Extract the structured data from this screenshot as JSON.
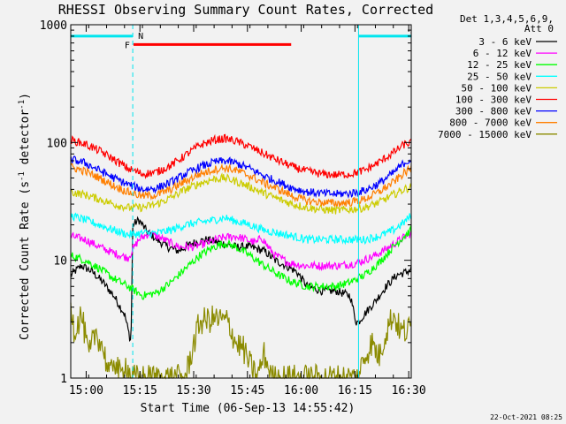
{
  "chart_data": {
    "type": "line",
    "title": "RHESSI Observing Summary Count Rates, Corrected",
    "xlabel": "Start Time (06-Sep-13 14:55:42)",
    "ylabel_main": "Corrected Count Rate (s",
    "ylabel_sup1": "-1",
    "ylabel_mid": " detector",
    "ylabel_sup2": "-1",
    "ylabel_end": ")",
    "timestamp": "22-Oct-2021 08:25",
    "yscale": "log",
    "xlim_min": [
      0,
      95
    ],
    "ylim": [
      1,
      1000
    ],
    "x_ticks": [
      {
        "min": 4.3,
        "label": "15:00"
      },
      {
        "min": 19.3,
        "label": "15:15"
      },
      {
        "min": 34.3,
        "label": "15:30"
      },
      {
        "min": 49.3,
        "label": "15:45"
      },
      {
        "min": 64.3,
        "label": "16:00"
      },
      {
        "min": 79.3,
        "label": "16:15"
      },
      {
        "min": 94.3,
        "label": "16:30"
      }
    ],
    "y_ticks": [
      {
        "value": 1,
        "label": "1"
      },
      {
        "value": 10,
        "label": "10"
      },
      {
        "value": 100,
        "label": "100"
      },
      {
        "value": 1000,
        "label": "1000"
      }
    ],
    "legend_header": [
      "Det 1,3,4,5,6,9,",
      "Att 0"
    ],
    "legend_position": "right",
    "flags": {
      "night_intervals_min": [
        [
          0,
          17.3
        ],
        [
          80.3,
          95
        ]
      ],
      "night_level": 800,
      "flare_interval_min": [
        17.5,
        61.5
      ],
      "flare_level": 680,
      "night_label": "N",
      "flare_label": "F",
      "night_color": "#00e5ee",
      "flare_color": "#ff0000"
    },
    "series": [
      {
        "name": "3 - 6 keV",
        "color": "#000000",
        "points": [
          [
            0,
            7.5
          ],
          [
            3,
            9
          ],
          [
            6,
            8
          ],
          [
            9,
            6.5
          ],
          [
            12,
            5
          ],
          [
            15,
            3.5
          ],
          [
            16.8,
            2
          ],
          [
            17.3,
            20
          ],
          [
            19,
            22
          ],
          [
            21,
            18
          ],
          [
            24,
            15
          ],
          [
            27,
            13
          ],
          [
            30,
            12
          ],
          [
            34,
            14
          ],
          [
            38,
            15
          ],
          [
            42,
            14
          ],
          [
            46,
            13
          ],
          [
            50,
            13
          ],
          [
            54,
            12
          ],
          [
            57,
            10
          ],
          [
            60,
            9
          ],
          [
            63,
            8
          ],
          [
            66,
            6
          ],
          [
            70,
            5.5
          ],
          [
            74,
            5.5
          ],
          [
            78,
            5
          ],
          [
            79.6,
            3
          ],
          [
            80.3,
            3
          ],
          [
            82,
            3.5
          ],
          [
            85,
            4.5
          ],
          [
            88,
            6
          ],
          [
            91,
            7.5
          ],
          [
            94,
            8
          ],
          [
            95,
            8.5
          ]
        ]
      },
      {
        "name": "6 - 12 keV",
        "color": "#ff00ff",
        "points": [
          [
            0,
            16
          ],
          [
            4,
            15
          ],
          [
            8,
            13
          ],
          [
            12,
            11.5
          ],
          [
            16,
            10.5
          ],
          [
            19,
            15
          ],
          [
            22,
            17
          ],
          [
            26,
            15
          ],
          [
            30,
            13
          ],
          [
            34,
            13
          ],
          [
            38,
            14
          ],
          [
            42,
            15.5
          ],
          [
            46,
            16
          ],
          [
            49,
            15
          ],
          [
            52,
            14
          ],
          [
            53,
            16
          ],
          [
            55,
            13
          ],
          [
            57,
            11
          ],
          [
            61,
            9.5
          ],
          [
            65,
            9
          ],
          [
            70,
            9
          ],
          [
            75,
            9
          ],
          [
            80,
            9.5
          ],
          [
            85,
            11
          ],
          [
            89,
            13
          ],
          [
            92,
            15
          ],
          [
            95,
            17
          ]
        ]
      },
      {
        "name": "12 - 25 keV",
        "color": "#00ff00",
        "points": [
          [
            0,
            11
          ],
          [
            4,
            10
          ],
          [
            8,
            8.5
          ],
          [
            12,
            7
          ],
          [
            16,
            6
          ],
          [
            20,
            5
          ],
          [
            24,
            5.3
          ],
          [
            28,
            6.5
          ],
          [
            32,
            8.5
          ],
          [
            36,
            11
          ],
          [
            40,
            13
          ],
          [
            43,
            14
          ],
          [
            46,
            13
          ],
          [
            50,
            11
          ],
          [
            54,
            9
          ],
          [
            58,
            7.5
          ],
          [
            62,
            6.5
          ],
          [
            66,
            6
          ],
          [
            70,
            6
          ],
          [
            74,
            6
          ],
          [
            78,
            6.5
          ],
          [
            82,
            7.5
          ],
          [
            86,
            9.5
          ],
          [
            90,
            13
          ],
          [
            93,
            16
          ],
          [
            95,
            18
          ]
        ]
      },
      {
        "name": "25 - 50 keV",
        "color": "#00ffff",
        "points": [
          [
            0,
            24
          ],
          [
            4,
            22
          ],
          [
            8,
            20
          ],
          [
            12,
            18
          ],
          [
            16,
            16.5
          ],
          [
            20,
            17
          ],
          [
            24,
            17
          ],
          [
            28,
            18
          ],
          [
            32,
            20
          ],
          [
            36,
            21
          ],
          [
            40,
            22
          ],
          [
            43,
            23
          ],
          [
            46,
            21.5
          ],
          [
            50,
            20
          ],
          [
            54,
            18
          ],
          [
            58,
            17
          ],
          [
            62,
            16
          ],
          [
            66,
            15
          ],
          [
            70,
            15
          ],
          [
            74,
            15
          ],
          [
            78,
            15
          ],
          [
            82,
            15
          ],
          [
            86,
            16
          ],
          [
            90,
            18
          ],
          [
            93,
            21
          ],
          [
            95,
            24
          ]
        ]
      },
      {
        "name": "50 - 100 keV",
        "color": "#cccc00",
        "points": [
          [
            0,
            38
          ],
          [
            4,
            36
          ],
          [
            8,
            33
          ],
          [
            12,
            30
          ],
          [
            16,
            28
          ],
          [
            20,
            28
          ],
          [
            24,
            30
          ],
          [
            28,
            34
          ],
          [
            32,
            40
          ],
          [
            36,
            45
          ],
          [
            40,
            49
          ],
          [
            43,
            50
          ],
          [
            46,
            47
          ],
          [
            50,
            42
          ],
          [
            54,
            37
          ],
          [
            58,
            33
          ],
          [
            62,
            30
          ],
          [
            66,
            28
          ],
          [
            70,
            27
          ],
          [
            74,
            26.5
          ],
          [
            78,
            27
          ],
          [
            82,
            28
          ],
          [
            86,
            31
          ],
          [
            90,
            36
          ],
          [
            93,
            40
          ],
          [
            95,
            42
          ]
        ]
      },
      {
        "name": "100 - 300 keV",
        "color": "#ff0000",
        "points": [
          [
            0,
            105
          ],
          [
            4,
            97
          ],
          [
            8,
            85
          ],
          [
            12,
            72
          ],
          [
            16,
            60
          ],
          [
            20,
            54
          ],
          [
            24,
            56
          ],
          [
            28,
            64
          ],
          [
            32,
            78
          ],
          [
            36,
            95
          ],
          [
            40,
            105
          ],
          [
            43,
            108
          ],
          [
            46,
            103
          ],
          [
            50,
            92
          ],
          [
            54,
            80
          ],
          [
            58,
            70
          ],
          [
            62,
            62
          ],
          [
            66,
            57
          ],
          [
            70,
            54
          ],
          [
            74,
            53
          ],
          [
            78,
            54
          ],
          [
            82,
            58
          ],
          [
            86,
            68
          ],
          [
            90,
            82
          ],
          [
            93,
            96
          ],
          [
            95,
            100
          ]
        ]
      },
      {
        "name": "300 - 800 keV",
        "color": "#0000ff",
        "points": [
          [
            0,
            72
          ],
          [
            4,
            67
          ],
          [
            8,
            58
          ],
          [
            12,
            50
          ],
          [
            16,
            44
          ],
          [
            20,
            40
          ],
          [
            24,
            41
          ],
          [
            28,
            46
          ],
          [
            32,
            54
          ],
          [
            36,
            62
          ],
          [
            40,
            68
          ],
          [
            43,
            70
          ],
          [
            46,
            67
          ],
          [
            50,
            60
          ],
          [
            54,
            52
          ],
          [
            58,
            46
          ],
          [
            62,
            41
          ],
          [
            66,
            38
          ],
          [
            70,
            37
          ],
          [
            74,
            36.5
          ],
          [
            78,
            37
          ],
          [
            82,
            39
          ],
          [
            86,
            45
          ],
          [
            90,
            55
          ],
          [
            93,
            67
          ],
          [
            95,
            72
          ]
        ]
      },
      {
        "name": "800 - 7000 keV",
        "color": "#ff7f00",
        "points": [
          [
            0,
            62
          ],
          [
            4,
            57
          ],
          [
            8,
            50
          ],
          [
            12,
            43
          ],
          [
            16,
            38
          ],
          [
            20,
            35
          ],
          [
            24,
            36
          ],
          [
            28,
            40
          ],
          [
            32,
            47
          ],
          [
            36,
            54
          ],
          [
            40,
            59
          ],
          [
            43,
            61
          ],
          [
            46,
            58
          ],
          [
            50,
            52
          ],
          [
            54,
            45
          ],
          [
            58,
            40
          ],
          [
            62,
            35
          ],
          [
            66,
            32
          ],
          [
            70,
            31
          ],
          [
            74,
            30.5
          ],
          [
            78,
            31
          ],
          [
            82,
            33
          ],
          [
            86,
            38
          ],
          [
            90,
            46
          ],
          [
            93,
            55
          ],
          [
            95,
            60
          ]
        ]
      },
      {
        "name": "7000 - 15000 keV",
        "color": "#8b8b00",
        "points": [
          [
            0,
            4.5
          ],
          [
            1,
            2.5
          ],
          [
            3,
            3.5
          ],
          [
            5,
            1.5
          ],
          [
            7,
            2.5
          ],
          [
            9,
            1.8
          ],
          [
            11,
            1
          ],
          [
            12,
            1.5
          ],
          [
            14,
            1
          ],
          [
            15,
            1.4
          ],
          [
            17,
            1
          ],
          [
            32,
            1
          ],
          [
            34,
            1.8
          ],
          [
            36,
            3
          ],
          [
            40,
            3.2
          ],
          [
            44,
            3
          ],
          [
            46,
            2
          ],
          [
            48,
            1.8
          ],
          [
            50,
            1.3
          ],
          [
            52,
            1
          ],
          [
            54,
            1.6
          ],
          [
            56,
            1
          ],
          [
            80,
            1
          ],
          [
            82,
            1.5
          ],
          [
            84,
            2
          ],
          [
            86,
            1.5
          ],
          [
            88,
            2.5
          ],
          [
            90,
            3.5
          ],
          [
            92,
            2.5
          ],
          [
            94,
            2.5
          ],
          [
            95,
            2.8
          ]
        ]
      }
    ]
  }
}
